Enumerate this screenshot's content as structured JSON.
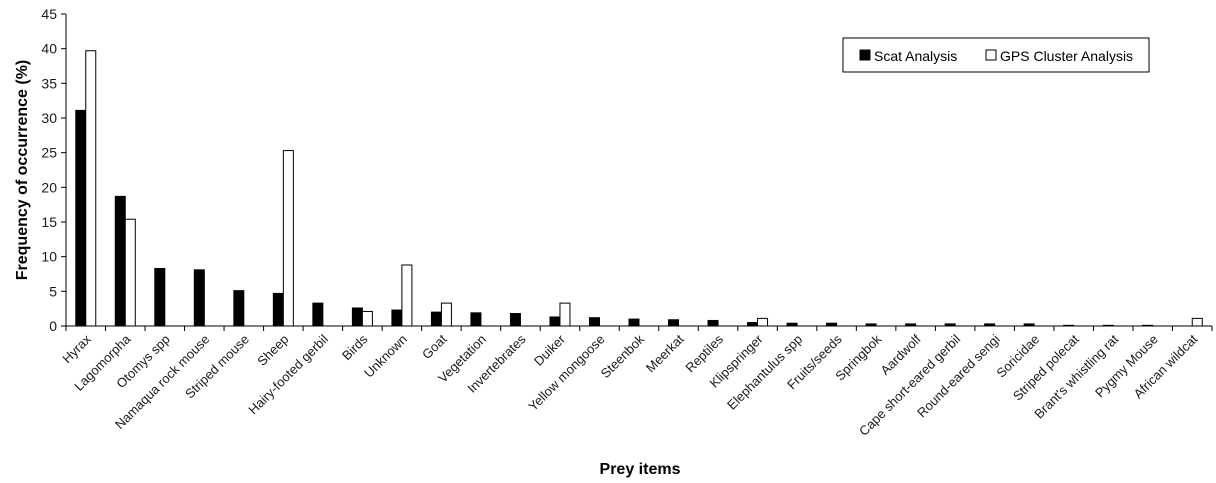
{
  "chart_data": {
    "type": "bar",
    "title": "",
    "xlabel": "Prey items",
    "ylabel": "Frequency of occurrence (%)",
    "ylim": [
      0,
      45
    ],
    "yticks": [
      0,
      5,
      10,
      15,
      20,
      25,
      30,
      35,
      40,
      45
    ],
    "grid": false,
    "legend_position": "top-right",
    "categories": [
      "Hyrax",
      "Lagomorpha",
      "Otomys spp",
      "Namaqua rock mouse",
      "Striped mouse",
      "Sheep",
      "Hairy-footed gerbil",
      "Birds",
      "Unknown",
      "Goat",
      "Vegetation",
      "Invertebrates",
      "Duiker",
      "Yellow mongoose",
      "Steenbok",
      "Meerkat",
      "Reptiles",
      "Klipspringer",
      "Elephantulus spp",
      "Fruits/seeds",
      "Springbok",
      "Aardwolf",
      "Cape short-eared gerbil",
      "Round-eared sengi",
      "Soricidae",
      "Striped polecat",
      "Brant's whistling rat",
      "Pygmy Mouse",
      "African wildcat"
    ],
    "series": [
      {
        "name": "Scat Analysis",
        "color": "#000000",
        "values": [
          31.1,
          18.7,
          8.3,
          8.1,
          5.1,
          4.7,
          3.3,
          2.6,
          2.3,
          2.0,
          1.9,
          1.8,
          1.3,
          1.2,
          1.0,
          0.9,
          0.8,
          0.5,
          0.4,
          0.4,
          0.3,
          0.3,
          0.3,
          0.3,
          0.3,
          0.1,
          0.1,
          0.1,
          0
        ]
      },
      {
        "name": "GPS Cluster Analysis",
        "color": "#ffffff",
        "values": [
          39.7,
          15.4,
          0,
          0,
          0,
          25.3,
          0,
          2.1,
          8.8,
          3.3,
          0,
          0,
          3.3,
          0,
          0,
          0,
          0,
          1.1,
          0,
          0,
          0,
          0,
          0,
          0,
          0,
          0,
          0,
          0,
          1.1
        ]
      }
    ]
  }
}
